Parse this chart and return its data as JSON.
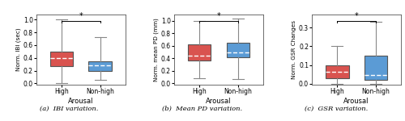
{
  "subplots": [
    {
      "ylabel": "Norm. IBI (sec)",
      "xlabel": "Arousal",
      "caption": "(a)  IBI variation.",
      "categories": [
        "High",
        "Non-high"
      ],
      "colors": [
        "#d9534f",
        "#5b9bd5"
      ],
      "boxes": [
        {
          "q1": 0.27,
          "median": 0.4,
          "q3": 0.5,
          "whislo": 0.0,
          "whishi": 1.0
        },
        {
          "q1": 0.2,
          "median": 0.28,
          "q3": 0.35,
          "whislo": 0.05,
          "whishi": 0.72
        }
      ],
      "ylim": [
        -0.02,
        1.08
      ],
      "yticks": [
        0.0,
        0.2,
        0.4,
        0.6,
        0.8,
        1.0
      ]
    },
    {
      "ylabel": "Norm. mean PD (mm)",
      "xlabel": "Arousal",
      "caption": "(b)  Mean PD variation.",
      "categories": [
        "High",
        "Non-high"
      ],
      "colors": [
        "#d9534f",
        "#5b9bd5"
      ],
      "boxes": [
        {
          "q1": 0.37,
          "median": 0.44,
          "q3": 0.62,
          "whislo": 0.08,
          "whishi": 1.0
        },
        {
          "q1": 0.42,
          "median": 0.5,
          "q3": 0.65,
          "whislo": 0.07,
          "whishi": 1.03
        }
      ],
      "ylim": [
        -0.02,
        1.1
      ],
      "yticks": [
        0.0,
        0.2,
        0.4,
        0.6,
        0.8,
        1.0
      ]
    },
    {
      "ylabel": "Norm. GSR Changes",
      "xlabel": "Arousal",
      "caption": "(c)  GSR variation.",
      "categories": [
        "High",
        "Non-high"
      ],
      "colors": [
        "#d9534f",
        "#5b9bd5"
      ],
      "boxes": [
        {
          "q1": 0.03,
          "median": 0.065,
          "q3": 0.1,
          "whislo": 0.0,
          "whishi": 0.2
        },
        {
          "q1": 0.02,
          "median": 0.045,
          "q3": 0.15,
          "whislo": 0.0,
          "whishi": 0.33
        }
      ],
      "ylim": [
        -0.005,
        0.37
      ],
      "yticks": [
        0.0,
        0.1,
        0.2,
        0.3
      ]
    }
  ],
  "significance_marker": "*",
  "whisker_color": "#888888",
  "cap_color": "#888888",
  "edge_color": "#555555",
  "bg_color": "#ffffff"
}
